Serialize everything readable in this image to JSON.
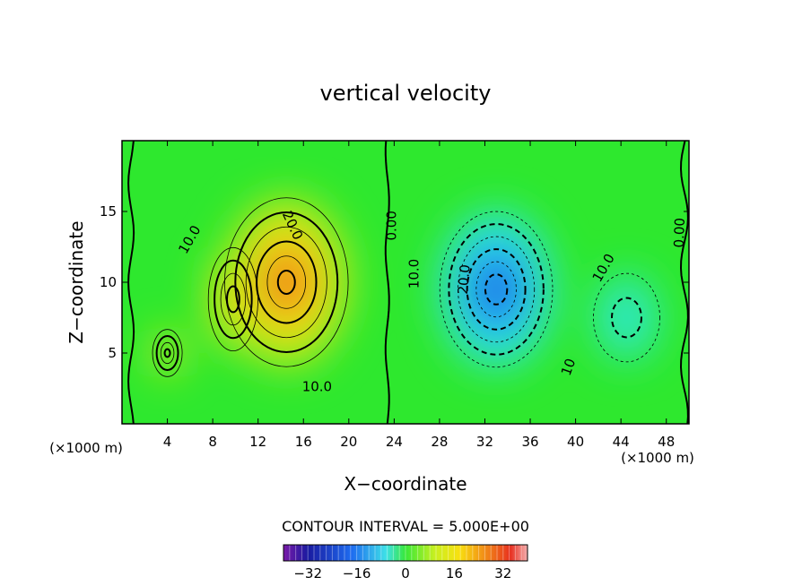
{
  "chart_data": {
    "type": "heatmap",
    "title": "vertical velocity",
    "xlabel": "X−coordinate",
    "ylabel": "Z−coordinate",
    "x_unit_left": "(×1000 m)",
    "x_unit_right": "(×1000 m)",
    "xlim": [
      0,
      50
    ],
    "ylim": [
      0,
      20
    ],
    "x_ticks": [
      4,
      8,
      12,
      16,
      20,
      24,
      28,
      32,
      36,
      40,
      44,
      48
    ],
    "x_tick_labels": [
      "4",
      "8",
      "12",
      "16",
      "20",
      "24",
      "28",
      "32",
      "36",
      "40",
      "44",
      "48"
    ],
    "y_ticks": [
      5,
      10,
      15
    ],
    "y_tick_labels": [
      "5",
      "10",
      "15"
    ],
    "contour_interval_text": "CONTOUR INTERVAL = 5.000E+00",
    "contour_interval": 5,
    "contour_labels": [
      {
        "text": "10.0",
        "x": 6.0,
        "z": 13.0,
        "rotate": -60
      },
      {
        "text": "20.0",
        "x": 15.0,
        "z": 14.0,
        "rotate": 65
      },
      {
        "text": "10.0",
        "x": 17.2,
        "z": 2.6,
        "rotate": 0
      },
      {
        "text": "0.00",
        "x": 23.8,
        "z": 14.0,
        "rotate": -90
      },
      {
        "text": "10.0",
        "x": 25.8,
        "z": 10.6,
        "rotate": -90
      },
      {
        "text": "20.0",
        "x": 30.2,
        "z": 10.2,
        "rotate": -85
      },
      {
        "text": "10.0",
        "x": 42.5,
        "z": 11.0,
        "rotate": -60
      },
      {
        "text": "0.00",
        "x": 49.2,
        "z": 13.5,
        "rotate": -88
      },
      {
        "text": "10",
        "x": 39.4,
        "z": 4.0,
        "rotate": -70
      }
    ],
    "features": [
      {
        "name": "updraft-main",
        "x": 14.5,
        "z": 10.0,
        "peak": 32,
        "sx": 4.2,
        "sz": 4.6
      },
      {
        "name": "updraft-secondary",
        "x": 9.8,
        "z": 8.8,
        "peak": 23,
        "sx": 1.8,
        "sz": 3.0
      },
      {
        "name": "updraft-small",
        "x": 4.0,
        "z": 5.0,
        "peak": 21,
        "sx": 1.1,
        "sz": 1.4
      },
      {
        "name": "downdraft-main",
        "x": 33.0,
        "z": 9.5,
        "peak": -34,
        "sx": 3.8,
        "sz": 4.2
      },
      {
        "name": "downdraft-east",
        "x": 44.5,
        "z": 7.5,
        "peak": -12,
        "sx": 3.0,
        "sz": 3.2
      }
    ],
    "colorbar": {
      "ticks": [
        -32,
        -16,
        0,
        16,
        32
      ],
      "tick_labels": [
        "−32",
        "−16",
        "0",
        "16",
        "32"
      ],
      "range": [
        -40,
        40
      ]
    },
    "grid": false
  }
}
